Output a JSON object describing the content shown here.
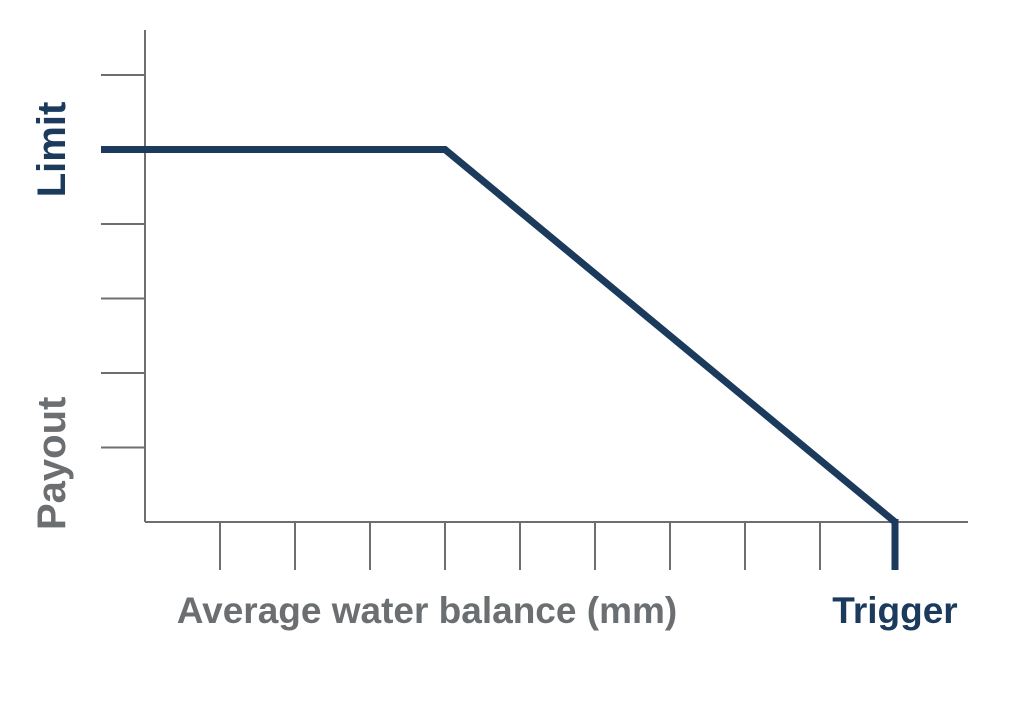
{
  "chart_data": {
    "type": "line",
    "title": "",
    "xlabel": "Average water balance (mm)",
    "ylabel": "Payout",
    "x_annotation": "Trigger",
    "y_annotation": "Limit",
    "xlim": [
      0,
      11
    ],
    "ylim": [
      0,
      6
    ],
    "x_ticks": [
      1,
      2,
      3,
      4,
      5,
      6,
      7,
      8,
      9,
      10
    ],
    "y_ticks": [
      1,
      2,
      3,
      4,
      5,
      6
    ],
    "limit_value": 5,
    "trigger_value": 10,
    "series": [
      {
        "points": [
          [
            0,
            5
          ],
          [
            4,
            5
          ],
          [
            10,
            0
          ]
        ]
      }
    ],
    "grid": false,
    "colors": {
      "line": "#1b3a5c",
      "axis": "#6b6f72",
      "label": "#6b6f72",
      "annotation": "#1b3a5c"
    }
  }
}
